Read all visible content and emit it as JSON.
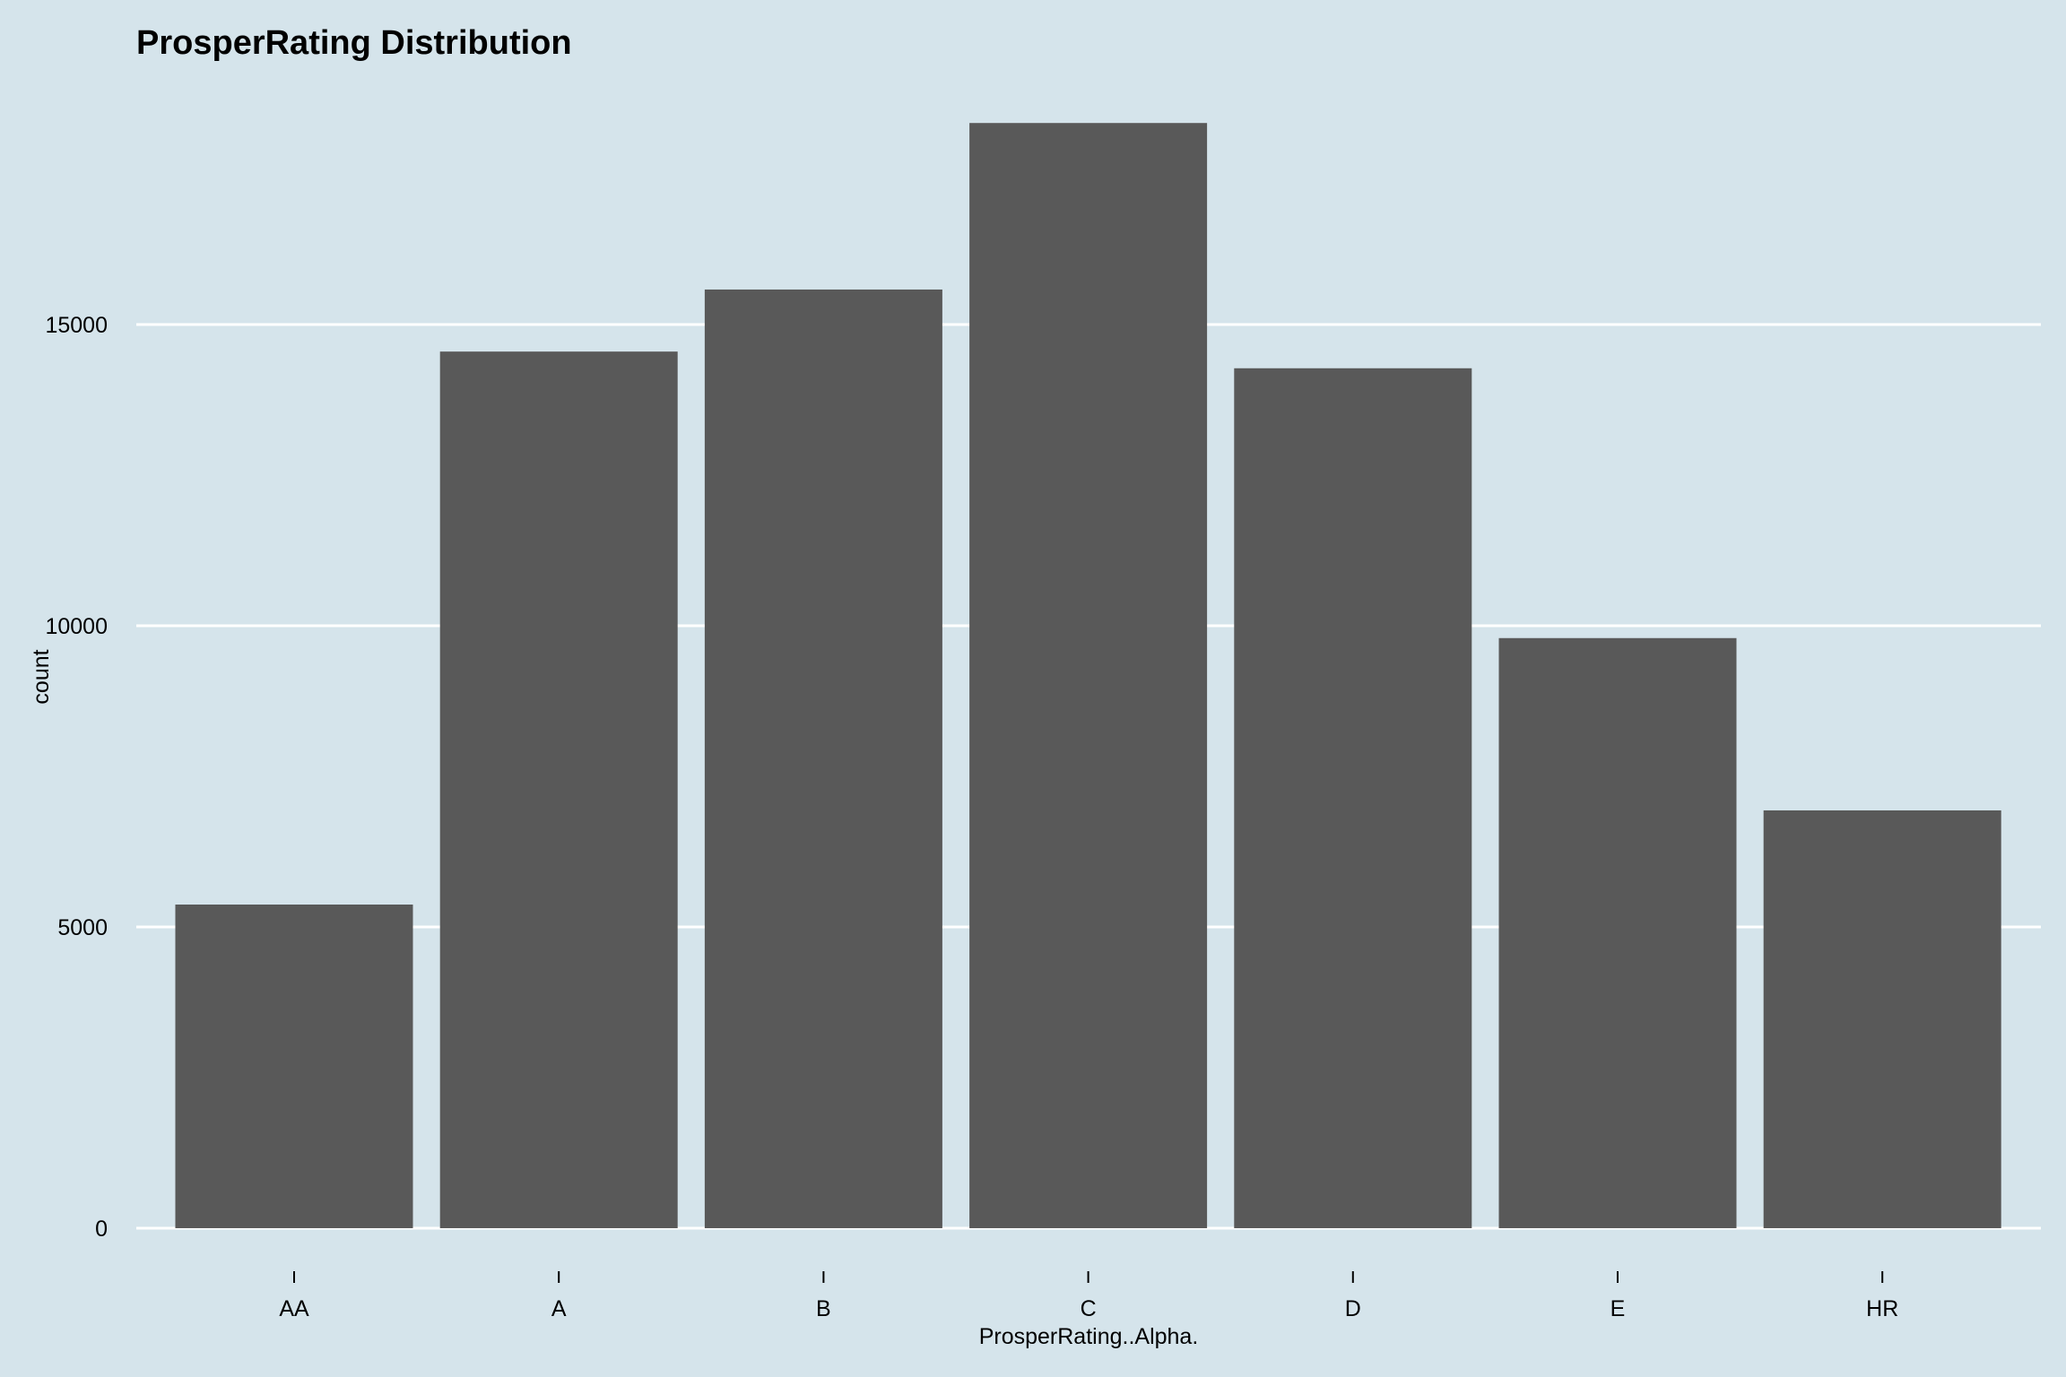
{
  "chart_data": {
    "type": "bar",
    "title": "ProsperRating Distribution",
    "xlabel": "ProsperRating..Alpha.",
    "ylabel": "count",
    "categories": [
      "AA",
      "A",
      "B",
      "C",
      "D",
      "E",
      "HR"
    ],
    "values": [
      5372,
      14551,
      15581,
      18345,
      14274,
      9795,
      6935
    ],
    "ylim": [
      0,
      19000
    ],
    "yticks": [
      0,
      5000,
      10000,
      15000
    ],
    "ytick_labels": [
      "0",
      "5000",
      "10000",
      "15000"
    ],
    "grid": "horizontal major",
    "legend": "none"
  },
  "colors": {
    "background": "#d5e4eb",
    "bar": "#595959",
    "grid": "#ffffff",
    "text": "#000000"
  }
}
